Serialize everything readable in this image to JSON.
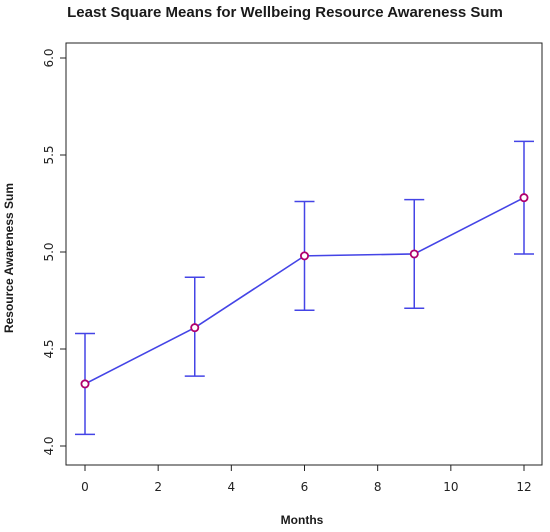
{
  "chart_data": {
    "type": "line",
    "title": "Least Square Means for Wellbeing Resource Awareness Sum",
    "xlabel": "Months",
    "ylabel": "Resource Awareness Sum",
    "xlim": [
      0,
      12
    ],
    "ylim": [
      4.0,
      6.0
    ],
    "x_ticks": [
      0,
      2,
      4,
      6,
      8,
      10,
      12
    ],
    "y_ticks": [
      "4.0",
      "4.5",
      "5.0",
      "5.5",
      "6.0"
    ],
    "series": [
      {
        "x": [
          0,
          3,
          6,
          9,
          12
        ],
        "y": [
          4.32,
          4.61,
          4.98,
          4.99,
          5.28
        ],
        "lower": [
          4.06,
          4.36,
          4.7,
          4.71,
          4.99
        ],
        "upper": [
          4.58,
          4.87,
          5.26,
          5.27,
          5.57
        ]
      }
    ],
    "grid": false,
    "colors": {
      "line": "#4444e6",
      "marker": "#b0006e",
      "axis": "#222222"
    }
  }
}
